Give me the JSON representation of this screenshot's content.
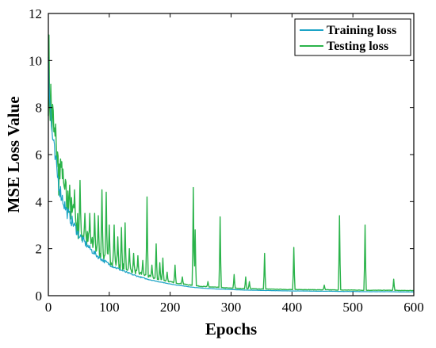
{
  "chart_data": {
    "type": "line",
    "xlabel": "Epochs",
    "ylabel": "MSE Loss Value",
    "xlim": [
      0,
      600
    ],
    "ylim": [
      0,
      12
    ],
    "xticks": [
      0,
      100,
      200,
      300,
      400,
      500,
      600
    ],
    "yticks": [
      0,
      2,
      4,
      6,
      8,
      10,
      12
    ],
    "grid": false,
    "legend_position": "top-right",
    "series": [
      {
        "name": "Training loss",
        "color": "#1ba3c6",
        "x": [
          0,
          2,
          5,
          10,
          15,
          20,
          30,
          40,
          50,
          60,
          70,
          80,
          90,
          100,
          110,
          120,
          130,
          140,
          150,
          160,
          170,
          180,
          190,
          200,
          210,
          220,
          230,
          240,
          250,
          260,
          280,
          300,
          320,
          340,
          360,
          380,
          400,
          420,
          440,
          460,
          480,
          500,
          520,
          540,
          560,
          580,
          600
        ],
        "y": [
          10.5,
          8.6,
          7.2,
          6.0,
          5.1,
          4.4,
          3.6,
          3.1,
          2.6,
          2.25,
          1.95,
          1.7,
          1.5,
          1.33,
          1.2,
          1.08,
          0.97,
          0.88,
          0.8,
          0.72,
          0.66,
          0.6,
          0.55,
          0.5,
          0.45,
          0.42,
          0.38,
          0.35,
          0.33,
          0.31,
          0.28,
          0.26,
          0.24,
          0.23,
          0.22,
          0.21,
          0.2,
          0.2,
          0.19,
          0.19,
          0.18,
          0.18,
          0.17,
          0.17,
          0.17,
          0.16,
          0.16
        ]
      },
      {
        "name": "Testing loss",
        "color": "#2ab34a",
        "x": [
          0,
          2,
          5,
          10,
          15,
          20,
          30,
          40,
          50,
          60,
          70,
          80,
          90,
          100,
          110,
          120,
          130,
          140,
          150,
          160,
          170,
          180,
          190,
          200,
          210,
          220,
          230,
          240,
          250,
          260,
          280,
          300,
          320,
          340,
          360,
          380,
          400,
          420,
          440,
          460,
          480,
          500,
          520,
          540,
          560,
          580,
          600
        ],
        "y": [
          9.8,
          8.9,
          7.8,
          6.6,
          5.6,
          4.9,
          4.0,
          3.4,
          2.9,
          2.5,
          2.2,
          1.95,
          1.75,
          1.55,
          1.4,
          1.27,
          1.15,
          1.05,
          0.95,
          0.86,
          0.78,
          0.71,
          0.65,
          0.59,
          0.54,
          0.5,
          0.46,
          0.43,
          0.4,
          0.38,
          0.35,
          0.32,
          0.3,
          0.29,
          0.28,
          0.27,
          0.26,
          0.26,
          0.25,
          0.25,
          0.24,
          0.24,
          0.23,
          0.23,
          0.23,
          0.22,
          0.22
        ],
        "spikes": [
          [
            12,
            7.3
          ],
          [
            22,
            5.7
          ],
          [
            28,
            4.9
          ],
          [
            35,
            4.7
          ],
          [
            43,
            4.5
          ],
          [
            52,
            4.9
          ],
          [
            60,
            3.5
          ],
          [
            68,
            3.5
          ],
          [
            76,
            3.5
          ],
          [
            82,
            3.4
          ],
          [
            88,
            4.5
          ],
          [
            95,
            4.4
          ],
          [
            100,
            3.0
          ],
          [
            108,
            3.0
          ],
          [
            114,
            2.5
          ],
          [
            120,
            2.9
          ],
          [
            126,
            3.1
          ],
          [
            133,
            2.0
          ],
          [
            140,
            1.8
          ],
          [
            147,
            1.7
          ],
          [
            155,
            1.5
          ],
          [
            162,
            4.2
          ],
          [
            170,
            1.3
          ],
          [
            177,
            2.2
          ],
          [
            183,
            1.4
          ],
          [
            188,
            1.6
          ],
          [
            195,
            1.0
          ],
          [
            208,
            1.3
          ],
          [
            220,
            0.8
          ],
          [
            238,
            4.6
          ],
          [
            241,
            2.8
          ],
          [
            262,
            0.6
          ],
          [
            282,
            3.35
          ],
          [
            305,
            0.9
          ],
          [
            324,
            0.8
          ],
          [
            330,
            0.6
          ],
          [
            355,
            1.8
          ],
          [
            403,
            2.05
          ],
          [
            453,
            0.45
          ],
          [
            478,
            3.4
          ],
          [
            520,
            3.0
          ],
          [
            567,
            0.7
          ]
        ]
      }
    ]
  }
}
